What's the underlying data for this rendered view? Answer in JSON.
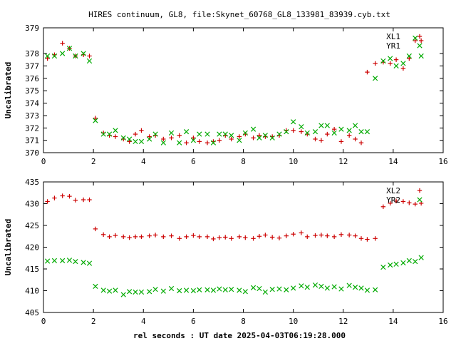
{
  "title": "HIRES continuum, GL8, file:Skynet_60768_GL8_133981_83939.cyb.txt",
  "xlabel": "rel seconds : UT date 2025-04-03T06:19:28.000",
  "colors": {
    "series1": "#cc0000",
    "series2": "#00aa00",
    "axis": "#000000",
    "grid": "#000000"
  },
  "chart_data": [
    {
      "type": "scatter",
      "ylabel": "Uncalibrated",
      "xlim": [
        0,
        16
      ],
      "ylim": [
        370,
        379
      ],
      "xticks": [
        0,
        2,
        4,
        6,
        8,
        10,
        12,
        14,
        16
      ],
      "yticks": [
        370,
        371,
        372,
        373,
        374,
        375,
        376,
        377,
        378,
        379
      ],
      "broken_axis": {
        "hidden_range": [
          373,
          374
        ],
        "note": "ticks 374 and 373 are drawn closer together than other ticks"
      },
      "legend_position": "top-right",
      "series": [
        {
          "name": "XL1",
          "marker": "plus",
          "color": "#cc0000",
          "x": [
            0.16,
            0.44,
            0.76,
            1.04,
            1.28,
            1.6,
            1.84,
            2.08,
            2.4,
            2.64,
            2.88,
            3.2,
            3.44,
            3.68,
            3.92,
            4.24,
            4.48,
            4.8,
            5.12,
            5.44,
            5.72,
            6.0,
            6.24,
            6.56,
            6.8,
            7.04,
            7.28,
            7.52,
            7.84,
            8.08,
            8.4,
            8.64,
            8.88,
            9.16,
            9.44,
            9.72,
            10.0,
            10.32,
            10.56,
            10.88,
            11.12,
            11.36,
            11.64,
            11.92,
            12.24,
            12.48,
            12.72,
            12.96,
            13.28,
            13.6,
            13.88,
            14.12,
            14.4,
            14.64,
            14.88,
            15.12
          ],
          "y": [
            377.6,
            377.9,
            378.4,
            378.2,
            377.8,
            377.9,
            377.8,
            372.8,
            371.6,
            371.4,
            371.3,
            371.1,
            370.9,
            371.5,
            371.8,
            371.3,
            371.4,
            371.1,
            371.2,
            371.4,
            370.8,
            371.2,
            370.9,
            370.8,
            370.9,
            371.0,
            371.4,
            371.1,
            371.3,
            371.5,
            371.2,
            371.4,
            371.3,
            371.3,
            371.4,
            371.8,
            371.8,
            371.7,
            371.5,
            371.1,
            371.0,
            371.5,
            371.9,
            370.9,
            371.4,
            371.1,
            370.8,
            376.5,
            377.2,
            377.3,
            377.2,
            377.5,
            376.8,
            377.6,
            378.5,
            378.5
          ]
        },
        {
          "name": "YR1",
          "marker": "cross",
          "color": "#00aa00",
          "x": [
            0.16,
            0.44,
            0.76,
            1.04,
            1.28,
            1.6,
            1.84,
            2.08,
            2.4,
            2.64,
            2.88,
            3.2,
            3.44,
            3.68,
            3.92,
            4.24,
            4.48,
            4.8,
            5.12,
            5.44,
            5.72,
            6.0,
            6.24,
            6.56,
            6.8,
            7.04,
            7.28,
            7.52,
            7.84,
            8.08,
            8.4,
            8.64,
            8.88,
            9.16,
            9.44,
            9.72,
            10.0,
            10.32,
            10.56,
            10.88,
            11.12,
            11.36,
            11.64,
            11.92,
            12.24,
            12.48,
            12.72,
            12.96,
            13.28,
            13.6,
            13.88,
            14.12,
            14.4,
            14.64,
            14.88,
            15.12
          ],
          "y": [
            377.8,
            377.8,
            378.0,
            378.2,
            377.8,
            378.0,
            377.4,
            372.6,
            371.5,
            371.5,
            371.8,
            371.2,
            371.1,
            370.9,
            370.9,
            371.1,
            371.5,
            370.8,
            371.6,
            370.8,
            371.7,
            371.0,
            371.5,
            371.5,
            370.8,
            371.5,
            371.5,
            371.4,
            371.0,
            371.6,
            371.9,
            371.2,
            371.4,
            371.2,
            371.5,
            371.7,
            372.5,
            372.1,
            371.6,
            371.7,
            372.2,
            372.2,
            371.6,
            371.9,
            371.8,
            372.2,
            371.7,
            371.7,
            376.0,
            377.4,
            377.6,
            377.0,
            377.2,
            377.8,
            378.6,
            377.8
          ]
        }
      ]
    },
    {
      "type": "scatter",
      "ylabel": "Uncalibrated",
      "xlim": [
        0,
        16
      ],
      "ylim": [
        405,
        435
      ],
      "xticks": [
        0,
        2,
        4,
        6,
        8,
        10,
        12,
        14,
        16
      ],
      "yticks": [
        405,
        410,
        415,
        420,
        425,
        430,
        435
      ],
      "legend_position": "top-right",
      "series": [
        {
          "name": "XL2",
          "marker": "plus",
          "color": "#cc0000",
          "x": [
            0.16,
            0.44,
            0.76,
            1.04,
            1.28,
            1.6,
            1.84,
            2.08,
            2.4,
            2.64,
            2.88,
            3.2,
            3.44,
            3.68,
            3.92,
            4.24,
            4.48,
            4.8,
            5.12,
            5.44,
            5.72,
            6.0,
            6.24,
            6.56,
            6.8,
            7.04,
            7.28,
            7.52,
            7.84,
            8.08,
            8.4,
            8.64,
            8.88,
            9.16,
            9.44,
            9.72,
            10.0,
            10.32,
            10.56,
            10.88,
            11.12,
            11.36,
            11.64,
            11.92,
            12.24,
            12.48,
            12.72,
            12.96,
            13.28,
            13.6,
            13.88,
            14.12,
            14.4,
            14.64,
            14.88,
            15.12
          ],
          "y": [
            430.5,
            431.3,
            431.8,
            431.7,
            430.8,
            430.9,
            430.9,
            424.2,
            422.9,
            422.4,
            422.7,
            422.4,
            422.2,
            422.4,
            422.4,
            422.6,
            422.8,
            422.4,
            422.6,
            422.0,
            422.4,
            422.7,
            422.4,
            422.4,
            421.9,
            422.2,
            422.3,
            422.0,
            422.4,
            422.2,
            422.0,
            422.5,
            422.8,
            422.3,
            422.1,
            422.6,
            423.0,
            423.3,
            422.4,
            422.7,
            422.8,
            422.6,
            422.4,
            422.9,
            422.8,
            422.6,
            422.0,
            421.8,
            422.0,
            429.3,
            430.1,
            430.6,
            430.5,
            430.2,
            429.9,
            430.1
          ]
        },
        {
          "name": "YR2",
          "marker": "cross",
          "color": "#00aa00",
          "x": [
            0.16,
            0.44,
            0.76,
            1.04,
            1.28,
            1.6,
            1.84,
            2.08,
            2.4,
            2.64,
            2.88,
            3.2,
            3.44,
            3.68,
            3.92,
            4.24,
            4.48,
            4.8,
            5.12,
            5.44,
            5.72,
            6.0,
            6.24,
            6.56,
            6.8,
            7.04,
            7.28,
            7.52,
            7.84,
            8.08,
            8.4,
            8.64,
            8.88,
            9.16,
            9.44,
            9.72,
            10.0,
            10.32,
            10.56,
            10.88,
            11.12,
            11.36,
            11.64,
            11.92,
            12.24,
            12.48,
            12.72,
            12.96,
            13.28,
            13.6,
            13.88,
            14.12,
            14.4,
            14.64,
            14.88,
            15.12
          ],
          "y": [
            416.8,
            416.9,
            416.9,
            417.0,
            416.7,
            416.5,
            416.3,
            411.0,
            410.1,
            409.9,
            410.1,
            409.1,
            409.8,
            409.7,
            409.7,
            409.8,
            410.3,
            409.9,
            410.5,
            410.0,
            410.1,
            410.0,
            410.2,
            410.2,
            410.1,
            410.4,
            410.2,
            410.3,
            410.1,
            409.8,
            410.7,
            410.5,
            409.7,
            410.3,
            410.4,
            410.2,
            410.6,
            411.1,
            410.8,
            411.3,
            411.0,
            410.6,
            410.9,
            410.4,
            411.2,
            410.8,
            410.6,
            410.1,
            410.2,
            415.4,
            415.9,
            416.1,
            416.4,
            416.9,
            416.7,
            417.6
          ]
        }
      ]
    }
  ]
}
